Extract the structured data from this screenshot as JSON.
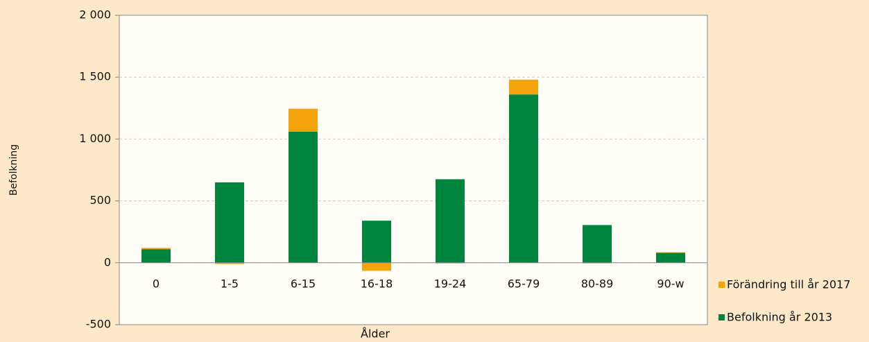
{
  "chart_data": {
    "type": "bar",
    "stacked": true,
    "x_label": "Ålder",
    "y_label": "Befolkning",
    "categories": [
      "0",
      "1-5",
      "6-15",
      "16-18",
      "19-24",
      "65-79",
      "80-89",
      "90-w"
    ],
    "series": [
      {
        "name": "Befolkning år 2013",
        "color": "#00853e",
        "values": [
          110,
          650,
          1060,
          340,
          675,
          1360,
          305,
          80
        ]
      },
      {
        "name": "Förändring till år 2017",
        "color": "#f5a30a",
        "values": [
          10,
          -10,
          185,
          -65,
          -5,
          120,
          -5,
          5
        ]
      }
    ],
    "ylim": [
      -500,
      2000
    ],
    "yticks": [
      -500,
      0,
      500,
      {
        "value": 1000,
        "label": "1 000"
      },
      {
        "value": 1500,
        "label": "1 500"
      },
      {
        "value": 2000,
        "label": "2 000"
      }
    ],
    "grid": true,
    "legend": "right"
  }
}
